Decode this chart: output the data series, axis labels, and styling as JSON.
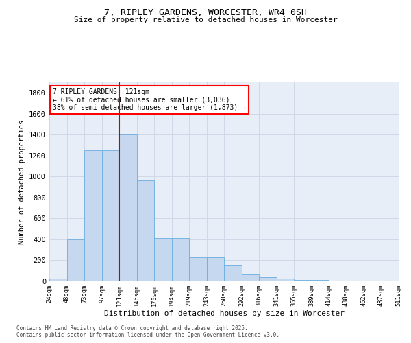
{
  "title": "7, RIPLEY GARDENS, WORCESTER, WR4 0SH",
  "subtitle": "Size of property relative to detached houses in Worcester",
  "xlabel": "Distribution of detached houses by size in Worcester",
  "ylabel": "Number of detached properties",
  "bar_values": [
    25,
    400,
    1250,
    1250,
    1400,
    960,
    415,
    415,
    230,
    230,
    150,
    65,
    40,
    25,
    15,
    10,
    5,
    5,
    0,
    0
  ],
  "categories": [
    "24sqm",
    "48sqm",
    "73sqm",
    "97sqm",
    "121sqm",
    "146sqm",
    "170sqm",
    "194sqm",
    "219sqm",
    "243sqm",
    "268sqm",
    "292sqm",
    "316sqm",
    "341sqm",
    "365sqm",
    "389sqm",
    "414sqm",
    "438sqm",
    "462sqm",
    "487sqm",
    "511sqm"
  ],
  "bar_color": "#c5d8f0",
  "bar_edge_color": "#6aaee0",
  "grid_color": "#d0d8e8",
  "vline_color": "#cc0000",
  "annotation_text": "7 RIPLEY GARDENS: 121sqm\n← 61% of detached houses are smaller (3,036)\n38% of semi-detached houses are larger (1,873) →",
  "ylim": [
    0,
    1900
  ],
  "yticks": [
    0,
    200,
    400,
    600,
    800,
    1000,
    1200,
    1400,
    1600,
    1800
  ],
  "footer1": "Contains HM Land Registry data © Crown copyright and database right 2025.",
  "footer2": "Contains public sector information licensed under the Open Government Licence v3.0.",
  "bg_color": "#ffffff",
  "plot_bg_color": "#e8eef8"
}
